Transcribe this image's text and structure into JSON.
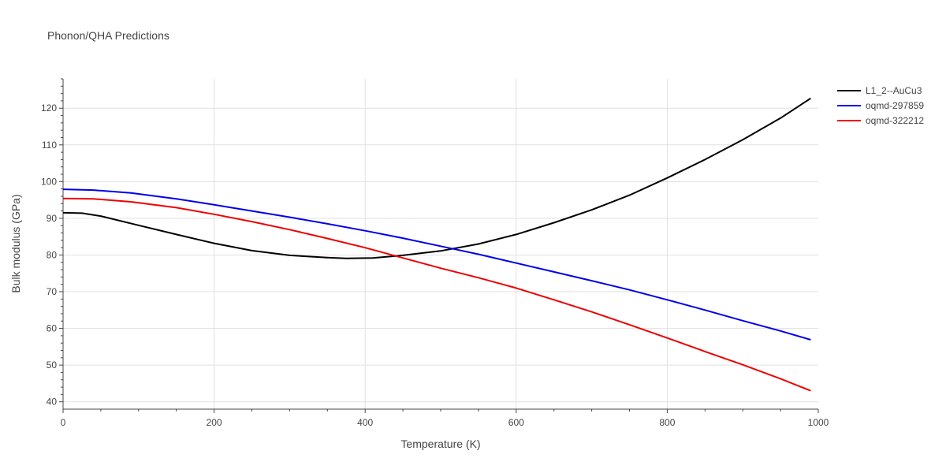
{
  "chart_data": {
    "type": "line",
    "title": "Phonon/QHA Predictions",
    "xlabel": "Temperature (K)",
    "ylabel": "Bulk modulus (GPa)",
    "xlim": [
      0,
      1000
    ],
    "ylim": [
      38,
      128
    ],
    "xticks": [
      0,
      200,
      400,
      600,
      800,
      1000
    ],
    "yticks": [
      40,
      50,
      60,
      70,
      80,
      90,
      100,
      110,
      120
    ],
    "grid": true,
    "legend_position": "top-right",
    "series": [
      {
        "name": "L1_2--AuCu3",
        "color": "#000000",
        "x": [
          0,
          25,
          50,
          100,
          150,
          200,
          250,
          300,
          350,
          375,
          410,
          450,
          500,
          550,
          600,
          650,
          700,
          750,
          800,
          850,
          900,
          950,
          990
        ],
        "y": [
          91.5,
          91.4,
          90.6,
          88.1,
          85.6,
          83.2,
          81.2,
          79.9,
          79.3,
          79.1,
          79.2,
          79.9,
          81.1,
          83.0,
          85.6,
          88.8,
          92.3,
          96.3,
          101.0,
          106.0,
          111.4,
          117.3,
          122.7
        ]
      },
      {
        "name": "oqmd-297859",
        "color": "#0000ee",
        "x": [
          0,
          40,
          90,
          150,
          200,
          250,
          300,
          350,
          400,
          450,
          500,
          550,
          600,
          650,
          700,
          750,
          800,
          850,
          900,
          950,
          990
        ],
        "y": [
          97.9,
          97.7,
          96.9,
          95.3,
          93.7,
          92.0,
          90.3,
          88.5,
          86.6,
          84.6,
          82.4,
          80.2,
          77.8,
          75.4,
          73.0,
          70.5,
          67.8,
          65.0,
          62.1,
          59.3,
          56.9
        ]
      },
      {
        "name": "oqmd-322212",
        "color": "#ee0000",
        "x": [
          0,
          40,
          90,
          150,
          200,
          250,
          300,
          350,
          400,
          450,
          500,
          550,
          600,
          650,
          700,
          750,
          800,
          850,
          900,
          950,
          990
        ],
        "y": [
          95.4,
          95.3,
          94.5,
          92.9,
          91.1,
          89.1,
          86.9,
          84.5,
          82.0,
          79.2,
          76.4,
          73.8,
          71.0,
          67.8,
          64.5,
          61.0,
          57.4,
          53.7,
          50.1,
          46.3,
          43.0
        ]
      }
    ]
  }
}
